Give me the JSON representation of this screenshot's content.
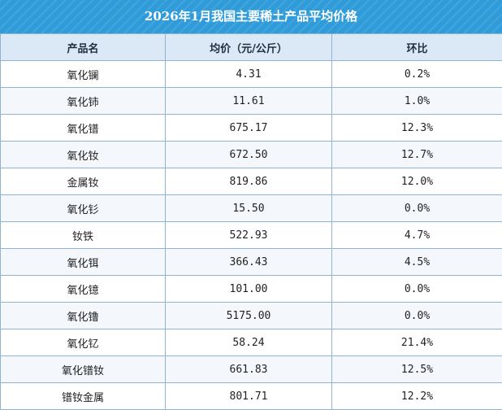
{
  "title": "2026年1月我国主要稀土产品平均价格",
  "columns": [
    "产品名",
    "均价（元/公斤）",
    "环比"
  ],
  "rows": [
    {
      "name": "氧化镧",
      "price": "4.31",
      "mom": "0.2%"
    },
    {
      "name": "氧化铈",
      "price": "11.61",
      "mom": "1.0%"
    },
    {
      "name": "氧化镨",
      "price": "675.17",
      "mom": "12.3%"
    },
    {
      "name": "氧化钕",
      "price": "672.50",
      "mom": "12.7%"
    },
    {
      "name": "金属钕",
      "price": "819.86",
      "mom": "12.0%"
    },
    {
      "name": "氧化钐",
      "price": "15.50",
      "mom": "0.0%"
    },
    {
      "name": "钕铁",
      "price": "522.93",
      "mom": "4.7%"
    },
    {
      "name": "氧化铒",
      "price": "366.43",
      "mom": "4.5%"
    },
    {
      "name": "氧化镱",
      "price": "101.00",
      "mom": "0.0%"
    },
    {
      "name": "氧化镥",
      "price": "5175.00",
      "mom": "0.0%"
    },
    {
      "name": "氧化钇",
      "price": "58.24",
      "mom": "21.4%"
    },
    {
      "name": "氧化镨钕",
      "price": "661.83",
      "mom": "12.5%"
    },
    {
      "name": "镨钕金属",
      "price": "801.71",
      "mom": "12.2%"
    }
  ]
}
